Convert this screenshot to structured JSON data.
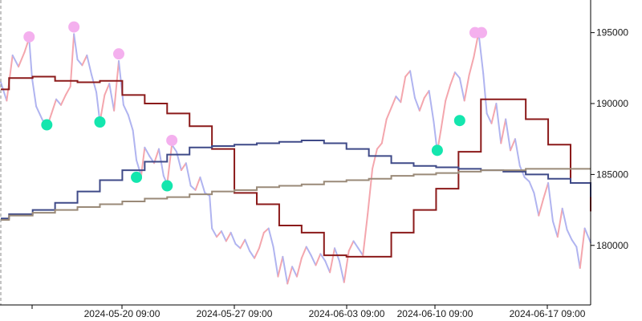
{
  "chart_data": {
    "type": "line",
    "title": "",
    "xlabel": "",
    "ylabel": "",
    "x_tick_labels": [
      "2024-05-20 09:00",
      "2024-05-27 09:00",
      "2024-06-03 09:00",
      "2024-06-10 09:00",
      "2024-06-17 09:00"
    ],
    "y_tick_values": [
      180000,
      185000,
      190000,
      195000
    ],
    "y_tick_labels": [
      "180000",
      "185000",
      "190000",
      "195000"
    ],
    "ylim": [
      175800,
      197300
    ],
    "x_domain": [
      0,
      100
    ],
    "grid": false,
    "legend": "none",
    "colors": {
      "price_up": "#f4a6ad",
      "price_down": "#b0b4f0",
      "step_fast": "#8b1a1a",
      "step_medium": "#3f4a88",
      "step_slow": "#9a8a78",
      "peak_marker": "#f4b0ee",
      "trough_marker": "#14e6ae"
    },
    "price_path": [
      [
        0.0,
        191500
      ],
      [
        1.0,
        190200
      ],
      [
        2.0,
        193400
      ],
      [
        3.0,
        192600
      ],
      [
        4.0,
        193600
      ],
      [
        4.8,
        194600
      ],
      [
        5.3,
        191800
      ],
      [
        6.0,
        189800
      ],
      [
        7.0,
        188900
      ],
      [
        7.8,
        188300
      ],
      [
        8.6,
        189300
      ],
      [
        9.4,
        190300
      ],
      [
        10.2,
        189900
      ],
      [
        11.0,
        190600
      ],
      [
        11.8,
        191200
      ],
      [
        12.4,
        194900
      ],
      [
        13.0,
        193100
      ],
      [
        13.8,
        192700
      ],
      [
        14.6,
        193400
      ],
      [
        15.4,
        192000
      ],
      [
        16.2,
        190800
      ],
      [
        16.8,
        188700
      ],
      [
        17.6,
        190600
      ],
      [
        18.4,
        191400
      ],
      [
        19.2,
        189500
      ],
      [
        20.0,
        193000
      ],
      [
        20.8,
        189900
      ],
      [
        21.6,
        189200
      ],
      [
        22.4,
        188100
      ],
      [
        23.0,
        186000
      ],
      [
        23.8,
        184900
      ],
      [
        24.4,
        186900
      ],
      [
        25.2,
        186300
      ],
      [
        26.0,
        185800
      ],
      [
        26.8,
        186800
      ],
      [
        27.6,
        184900
      ],
      [
        28.2,
        184300
      ],
      [
        29.0,
        187100
      ],
      [
        29.8,
        186600
      ],
      [
        30.6,
        185300
      ],
      [
        31.4,
        185800
      ],
      [
        32.2,
        184200
      ],
      [
        33.0,
        183900
      ],
      [
        33.8,
        184800
      ],
      [
        34.6,
        183700
      ],
      [
        35.4,
        183500
      ],
      [
        35.8,
        181200
      ],
      [
        36.6,
        180600
      ],
      [
        37.4,
        181000
      ],
      [
        38.2,
        180300
      ],
      [
        39.0,
        180900
      ],
      [
        39.8,
        180100
      ],
      [
        40.6,
        179800
      ],
      [
        41.4,
        180400
      ],
      [
        42.2,
        179600
      ],
      [
        43.0,
        179100
      ],
      [
        43.8,
        179800
      ],
      [
        44.6,
        180900
      ],
      [
        45.4,
        181200
      ],
      [
        46.2,
        179900
      ],
      [
        47.0,
        177800
      ],
      [
        47.8,
        179200
      ],
      [
        48.6,
        177300
      ],
      [
        49.4,
        178500
      ],
      [
        50.2,
        177800
      ],
      [
        51.0,
        179100
      ],
      [
        51.8,
        179900
      ],
      [
        52.6,
        179300
      ],
      [
        53.4,
        178600
      ],
      [
        54.2,
        179400
      ],
      [
        55.0,
        178900
      ],
      [
        55.8,
        178100
      ],
      [
        56.6,
        179800
      ],
      [
        57.4,
        178900
      ],
      [
        58.2,
        177400
      ],
      [
        59.0,
        179600
      ],
      [
        59.8,
        180300
      ],
      [
        60.6,
        179800
      ],
      [
        61.4,
        179300
      ],
      [
        62.2,
        182200
      ],
      [
        63.0,
        185400
      ],
      [
        63.8,
        186800
      ],
      [
        64.6,
        187200
      ],
      [
        65.4,
        188900
      ],
      [
        66.2,
        189700
      ],
      [
        67.0,
        190500
      ],
      [
        67.8,
        190100
      ],
      [
        68.6,
        191900
      ],
      [
        69.4,
        192300
      ],
      [
        70.2,
        190400
      ],
      [
        71.0,
        189500
      ],
      [
        71.8,
        190400
      ],
      [
        72.6,
        190900
      ],
      [
        73.4,
        188700
      ],
      [
        74.0,
        186600
      ],
      [
        74.6,
        188100
      ],
      [
        75.4,
        190200
      ],
      [
        76.2,
        191300
      ],
      [
        77.0,
        192200
      ],
      [
        77.8,
        191800
      ],
      [
        78.6,
        190200
      ],
      [
        79.4,
        192000
      ],
      [
        80.2,
        193300
      ],
      [
        81.0,
        195000
      ],
      [
        81.8,
        192100
      ],
      [
        82.4,
        189300
      ],
      [
        83.2,
        188600
      ],
      [
        84.0,
        190000
      ],
      [
        84.8,
        187200
      ],
      [
        85.6,
        188900
      ],
      [
        86.4,
        186700
      ],
      [
        87.2,
        187500
      ],
      [
        88.0,
        185600
      ],
      [
        88.8,
        184800
      ],
      [
        89.6,
        184500
      ],
      [
        90.4,
        183700
      ],
      [
        91.2,
        182100
      ],
      [
        92.0,
        183300
      ],
      [
        92.8,
        184400
      ],
      [
        93.6,
        181700
      ],
      [
        94.4,
        180600
      ],
      [
        95.2,
        182600
      ],
      [
        96.0,
        181100
      ],
      [
        96.8,
        180400
      ],
      [
        97.6,
        179900
      ],
      [
        98.2,
        178400
      ],
      [
        99.0,
        181200
      ],
      [
        100.0,
        180200
      ]
    ],
    "series": [
      {
        "key": "step_fast",
        "x": [
          0,
          1.4,
          5.4,
          9.2,
          13.0,
          16.8,
          20.6,
          24.4,
          28.2,
          32.0,
          35.8,
          39.6,
          43.4,
          47.2,
          51.0,
          54.8,
          58.6,
          62.4,
          66.2,
          70.0,
          73.8,
          77.6,
          81.4,
          85.2,
          89.0,
          92.8,
          96.6,
          100
        ],
        "y": [
          191000,
          191800,
          191900,
          191600,
          191500,
          191600,
          190600,
          190000,
          189300,
          188400,
          186800,
          183700,
          182900,
          181400,
          180900,
          179300,
          179200,
          179200,
          180900,
          182500,
          184000,
          186600,
          190300,
          190300,
          188900,
          187100,
          184400,
          182400
        ]
      },
      {
        "key": "step_medium",
        "x": [
          0,
          1.4,
          5.4,
          9.2,
          13.0,
          16.8,
          20.6,
          24.4,
          28.2,
          32.0,
          35.8,
          39.6,
          43.4,
          47.2,
          51.0,
          54.8,
          58.6,
          62.4,
          66.2,
          70.0,
          73.8,
          77.6,
          81.4,
          85.2,
          89.0,
          92.8,
          96.6,
          100
        ],
        "y": [
          181900,
          182200,
          182500,
          183000,
          183800,
          184600,
          185300,
          185900,
          186400,
          186900,
          187000,
          187100,
          187200,
          187300,
          187400,
          187200,
          186800,
          186300,
          185800,
          185600,
          185500,
          185400,
          185300,
          185200,
          185000,
          184700,
          184400,
          183400
        ]
      },
      {
        "key": "step_slow",
        "x": [
          0,
          1.4,
          5.4,
          9.2,
          13.0,
          16.8,
          20.6,
          24.4,
          28.2,
          32.0,
          35.8,
          39.6,
          43.4,
          47.2,
          51.0,
          54.8,
          58.6,
          62.4,
          66.2,
          70.0,
          73.8,
          77.6,
          81.4,
          85.2,
          89.0,
          92.8,
          96.6,
          100
        ],
        "y": [
          181800,
          182100,
          182300,
          182500,
          182700,
          182900,
          183100,
          183300,
          183400,
          183600,
          183800,
          183900,
          184100,
          184200,
          184300,
          184500,
          184600,
          184700,
          184900,
          185000,
          185100,
          185200,
          185300,
          185300,
          185400,
          185400,
          185400,
          185400
        ]
      }
    ],
    "peak_markers": [
      {
        "x": 4.8,
        "y": 194700
      },
      {
        "x": 12.4,
        "y": 195400
      },
      {
        "x": 20.0,
        "y": 193500
      },
      {
        "x": 29.0,
        "y": 187400
      },
      {
        "x": 80.4,
        "y": 195000
      },
      {
        "x": 81.5,
        "y": 195000
      }
    ],
    "trough_markers": [
      {
        "x": 7.8,
        "y": 188500
      },
      {
        "x": 16.8,
        "y": 188700
      },
      {
        "x": 23.0,
        "y": 184800
      },
      {
        "x": 28.2,
        "y": 184200
      },
      {
        "x": 74.0,
        "y": 186700
      },
      {
        "x": 77.8,
        "y": 188800
      }
    ]
  }
}
